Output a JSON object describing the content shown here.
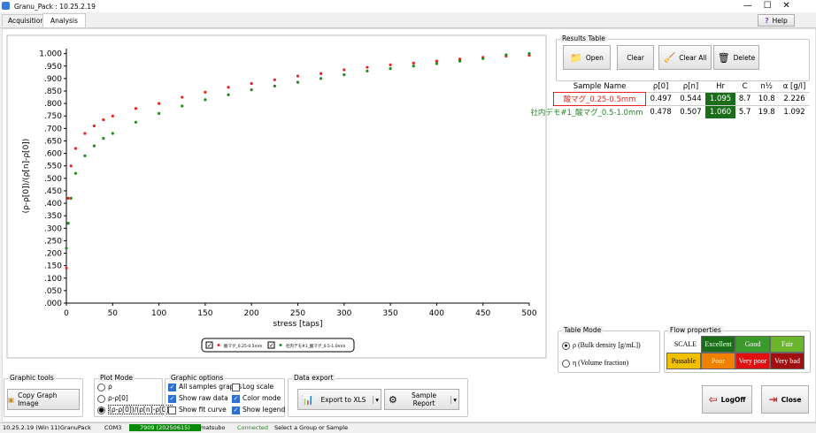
{
  "window": {
    "title": "Granu_Pack : 10.25.2.19",
    "tabs": [
      "Acquisition",
      "Analysis"
    ],
    "help": "Help"
  },
  "chart_data": {
    "type": "scatter",
    "x_label": "stress [taps]",
    "y_label": "(ρ-ρ[0])/(ρ[n]-ρ[0])",
    "x": [
      0,
      2,
      5,
      10,
      20,
      30,
      40,
      50,
      75,
      100,
      125,
      150,
      175,
      200,
      225,
      250,
      275,
      300,
      325,
      350,
      375,
      400,
      425,
      450,
      475,
      500
    ],
    "series": [
      {
        "name": "酸マグ_0.25-0.5mm",
        "color": "#e8231e",
        "values": [
          0.14,
          0.42,
          0.55,
          0.62,
          0.68,
          0.71,
          0.735,
          0.75,
          0.78,
          0.8,
          0.825,
          0.845,
          0.865,
          0.88,
          0.895,
          0.91,
          0.92,
          0.935,
          0.945,
          0.955,
          0.962,
          0.97,
          0.978,
          0.985,
          0.99,
          0.993
        ]
      },
      {
        "name": "社内デモ#1_酸マグ_0.5-1.0mm",
        "color": "#1f8a1f",
        "values": [
          0.22,
          0.32,
          0.42,
          0.52,
          0.59,
          0.63,
          0.66,
          0.68,
          0.725,
          0.76,
          0.79,
          0.815,
          0.835,
          0.855,
          0.87,
          0.885,
          0.9,
          0.915,
          0.93,
          0.94,
          0.95,
          0.96,
          0.97,
          0.98,
          0.995,
          1.0
        ]
      }
    ],
    "xlim": [
      0,
      500
    ],
    "ylim": [
      0,
      1.02
    ],
    "xticks": [
      0,
      50,
      100,
      150,
      200,
      250,
      300,
      350,
      400,
      450,
      500
    ],
    "yticks": [
      {
        "value": 0,
        "label": ".000"
      },
      {
        "value": 0.05,
        "label": ".050"
      },
      {
        "value": 0.1,
        "label": ".100"
      },
      {
        "value": 0.15,
        "label": ".150"
      },
      {
        "value": 0.2,
        "label": ".200"
      },
      {
        "value": 0.25,
        "label": ".250"
      },
      {
        "value": 0.3,
        "label": ".300"
      },
      {
        "value": 0.35,
        "label": ".350"
      },
      {
        "value": 0.4,
        "label": ".400"
      },
      {
        "value": 0.45,
        "label": ".450"
      },
      {
        "value": 0.5,
        "label": ".500"
      },
      {
        "value": 0.55,
        "label": ".550"
      },
      {
        "value": 0.6,
        "label": ".600"
      },
      {
        "value": 0.65,
        "label": ".650"
      },
      {
        "value": 0.7,
        "label": ".700"
      },
      {
        "value": 0.75,
        "label": ".750"
      },
      {
        "value": 0.8,
        "label": ".800"
      },
      {
        "value": 0.85,
        "label": ".850"
      },
      {
        "value": 0.9,
        "label": ".900"
      },
      {
        "value": 0.95,
        "label": ".950"
      },
      {
        "value": 1,
        "label": "1.000"
      }
    ],
    "legend": "bottom",
    "grid": false
  },
  "results": {
    "title": "Results Table",
    "buttons": [
      "Open",
      "Clear",
      "Clear All",
      "Delete"
    ],
    "columns": [
      "Sample Name",
      "ρ[0]",
      "ρ[n]",
      "Hr",
      "C",
      "n½",
      "α [g/l]"
    ],
    "rows": [
      [
        "酸マグ_0.25-0.5mm",
        "0.497",
        "0.544",
        "1.095",
        "8.7",
        "10.8",
        "2.226"
      ],
      [
        "社内デモ#1_酸マグ_0.5-1.0mm",
        "0.478",
        "0.507",
        "1.060",
        "5.7",
        "19.8",
        "1.092"
      ]
    ]
  },
  "table_mode": {
    "title": "Table Mode",
    "options": [
      "ρ (Bulk density [g/mL])",
      "η (Volume fraction)"
    ],
    "selected": 0
  },
  "flow": {
    "title": "Flow properties",
    "scale": "SCALE",
    "levels": [
      "Excellent",
      "Good",
      "Fair",
      "Passable",
      "Poor",
      "Very poor",
      "Very bad"
    ]
  },
  "graphic_tools": {
    "title": "Graphic tools",
    "button": "Copy Graph Image"
  },
  "plot_mode": {
    "title": "Plot Mode",
    "options": [
      "ρ",
      "ρ-ρ[0]",
      "(ρ-ρ[0])/(ρ[n]-ρ[0])"
    ],
    "selected": 2
  },
  "graphic_options": {
    "title": "Graphic options",
    "options": [
      {
        "label": "All samples graphs",
        "checked": true
      },
      {
        "label": "Show raw data",
        "checked": true
      },
      {
        "label": "Show fit curve",
        "checked": false
      },
      {
        "label": "Log scale",
        "checked": false
      },
      {
        "label": "Color mode",
        "checked": true
      },
      {
        "label": "Show legend",
        "checked": true
      }
    ]
  },
  "data_export": {
    "title": "Data export",
    "buttons": [
      "Export to XLS",
      "Sample Report"
    ]
  },
  "actions": [
    "LogOff",
    "Close"
  ],
  "status": [
    "10.25.2.19 (Win 11)",
    "GranuPack",
    "COM3",
    "7909 (20250615)",
    "matsubo",
    "Connected",
    "Select a Group or Sample"
  ]
}
